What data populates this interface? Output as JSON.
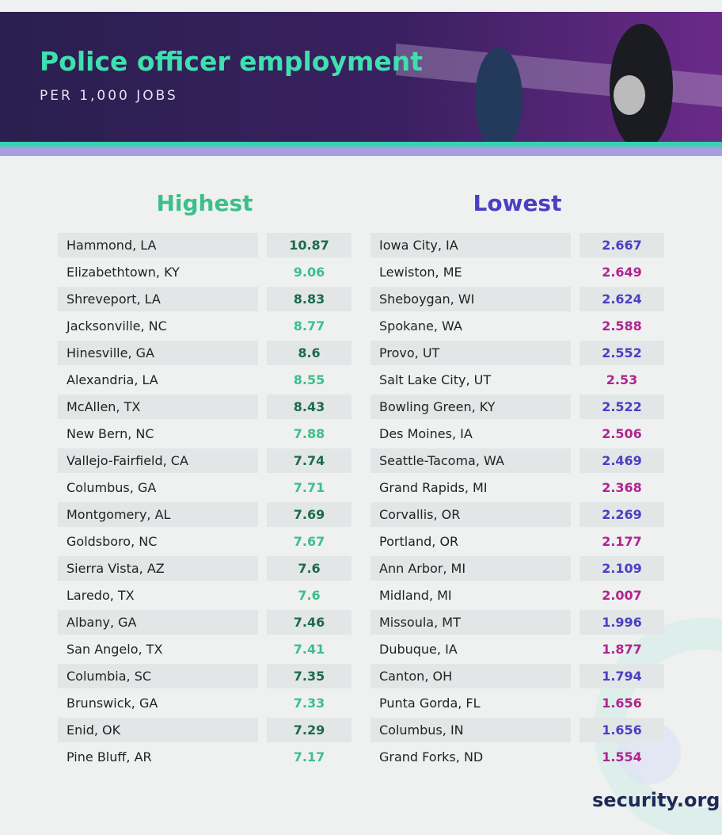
{
  "header": {
    "title": "Police officer employment",
    "subtitle": "PER 1,000 JOBS"
  },
  "tables": [
    {
      "title": "Highest",
      "rows": [
        [
          "Hammond, LA",
          "10.87"
        ],
        [
          "Elizabethtown, KY",
          "9.06"
        ],
        [
          "Shreveport, LA",
          "8.83"
        ],
        [
          "Jacksonville, NC",
          "8.77"
        ],
        [
          "Hinesville, GA",
          "8.6"
        ],
        [
          "Alexandria, LA",
          "8.55"
        ],
        [
          "McAllen, TX",
          "8.43"
        ],
        [
          "New Bern, NC",
          "7.88"
        ],
        [
          "Vallejo-Fairfield, CA",
          "7.74"
        ],
        [
          "Columbus, GA",
          "7.71"
        ],
        [
          "Montgomery, AL",
          "7.69"
        ],
        [
          "Goldsboro, NC",
          "7.67"
        ],
        [
          "Sierra Vista, AZ",
          "7.6"
        ],
        [
          "Laredo, TX",
          "7.6"
        ],
        [
          "Albany, GA",
          "7.46"
        ],
        [
          "San Angelo, TX",
          "7.41"
        ],
        [
          "Columbia, SC",
          "7.35"
        ],
        [
          "Brunswick, GA",
          "7.33"
        ],
        [
          "Enid, OK",
          "7.29"
        ],
        [
          "Pine Bluff, AR",
          "7.17"
        ]
      ]
    },
    {
      "title": "Lowest",
      "rows": [
        [
          "Iowa City, IA",
          "2.667"
        ],
        [
          "Lewiston, ME",
          "2.649"
        ],
        [
          "Sheboygan, WI",
          "2.624"
        ],
        [
          "Spokane, WA",
          "2.588"
        ],
        [
          "Provo, UT",
          "2.552"
        ],
        [
          "Salt Lake City, UT",
          "2.53"
        ],
        [
          "Bowling Green, KY",
          "2.522"
        ],
        [
          "Des Moines, IA",
          "2.506"
        ],
        [
          "Seattle-Tacoma, WA",
          "2.469"
        ],
        [
          "Grand Rapids, MI",
          "2.368"
        ],
        [
          "Corvallis, OR",
          "2.269"
        ],
        [
          "Portland, OR",
          "2.177"
        ],
        [
          "Ann Arbor, MI",
          "2.109"
        ],
        [
          "Midland, MI",
          "2.007"
        ],
        [
          "Missoula, MT",
          "1.996"
        ],
        [
          "Dubuque, IA",
          "1.877"
        ],
        [
          "Canton, OH",
          "1.794"
        ],
        [
          "Punta Gorda, FL",
          "1.656"
        ],
        [
          "Columbus, IN",
          "1.656"
        ],
        [
          "Grand Forks, ND",
          "1.554"
        ]
      ]
    }
  ],
  "brand": "security.org"
}
